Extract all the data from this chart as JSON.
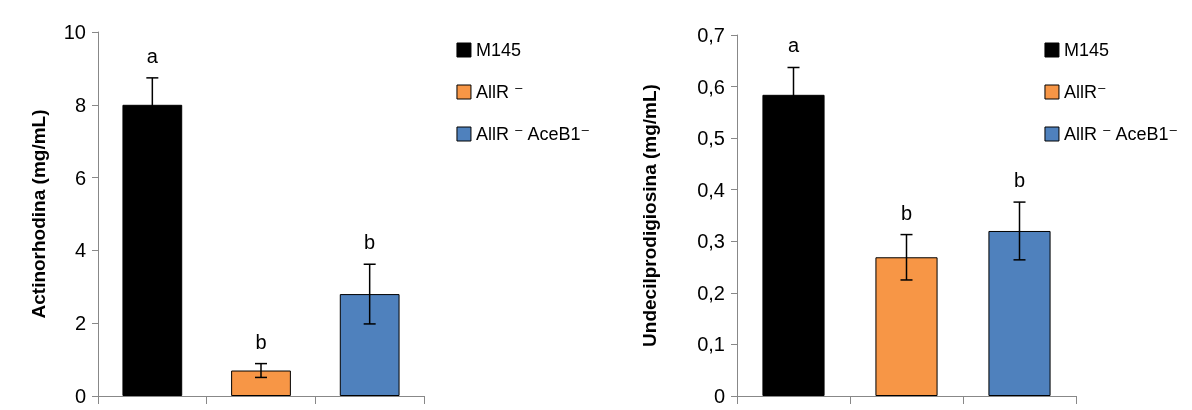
{
  "chart_data": [
    {
      "type": "bar",
      "ylabel": "Actinorhodina (mg/mL)",
      "categories": [
        null,
        null,
        null
      ],
      "series": [
        {
          "name": "M145",
          "color": "#000000",
          "values": [
            8.0,
            null,
            null
          ],
          "errors": [
            0.74,
            null,
            null
          ]
        },
        {
          "name": "AllR ⁻",
          "color": "#f79646",
          "values": [
            null,
            0.7,
            null
          ],
          "errors": [
            null,
            0.19,
            null
          ]
        },
        {
          "name": "AllR ⁻ AceB1⁻",
          "color": "#4f81bd",
          "values": [
            null,
            null,
            2.8
          ],
          "errors": [
            null,
            null,
            0.82
          ]
        }
      ],
      "ylim": [
        0,
        10
      ],
      "yticks": [
        0,
        2,
        4,
        6,
        8,
        10
      ],
      "grid": false,
      "legend": "top right",
      "annotations": [
        "a",
        "b",
        "b"
      ]
    },
    {
      "type": "bar",
      "ylabel": "Undecilprodigiosina (mg/mL)",
      "categories": [
        null,
        null,
        null
      ],
      "series": [
        {
          "name": "M145",
          "color": "#000000",
          "values": [
            0.584,
            null,
            null
          ],
          "errors": [
            0.053,
            null,
            null
          ]
        },
        {
          "name": "AllR⁻",
          "color": "#f79646",
          "values": [
            null,
            0.269,
            null
          ],
          "errors": [
            null,
            0.044,
            null
          ]
        },
        {
          "name": "AllR ⁻ AceB1⁻",
          "color": "#4f81bd",
          "values": [
            null,
            null,
            0.32
          ],
          "errors": [
            null,
            null,
            0.056
          ]
        }
      ],
      "ylim": [
        0,
        0.7
      ],
      "yticks": [
        0,
        {
          "value": 0.1,
          "label": "0,1"
        },
        {
          "value": 0.2,
          "label": "0,2"
        },
        {
          "value": 0.3,
          "label": "0,3"
        },
        {
          "value": 0.4,
          "label": "0,4"
        },
        {
          "value": 0.5,
          "label": "0,5"
        },
        {
          "value": 0.6,
          "label": "0,6"
        },
        {
          "value": 0.7,
          "label": "0,7"
        }
      ],
      "grid": false,
      "legend": "top right",
      "annotations": [
        "a",
        "b",
        "b"
      ]
    }
  ]
}
